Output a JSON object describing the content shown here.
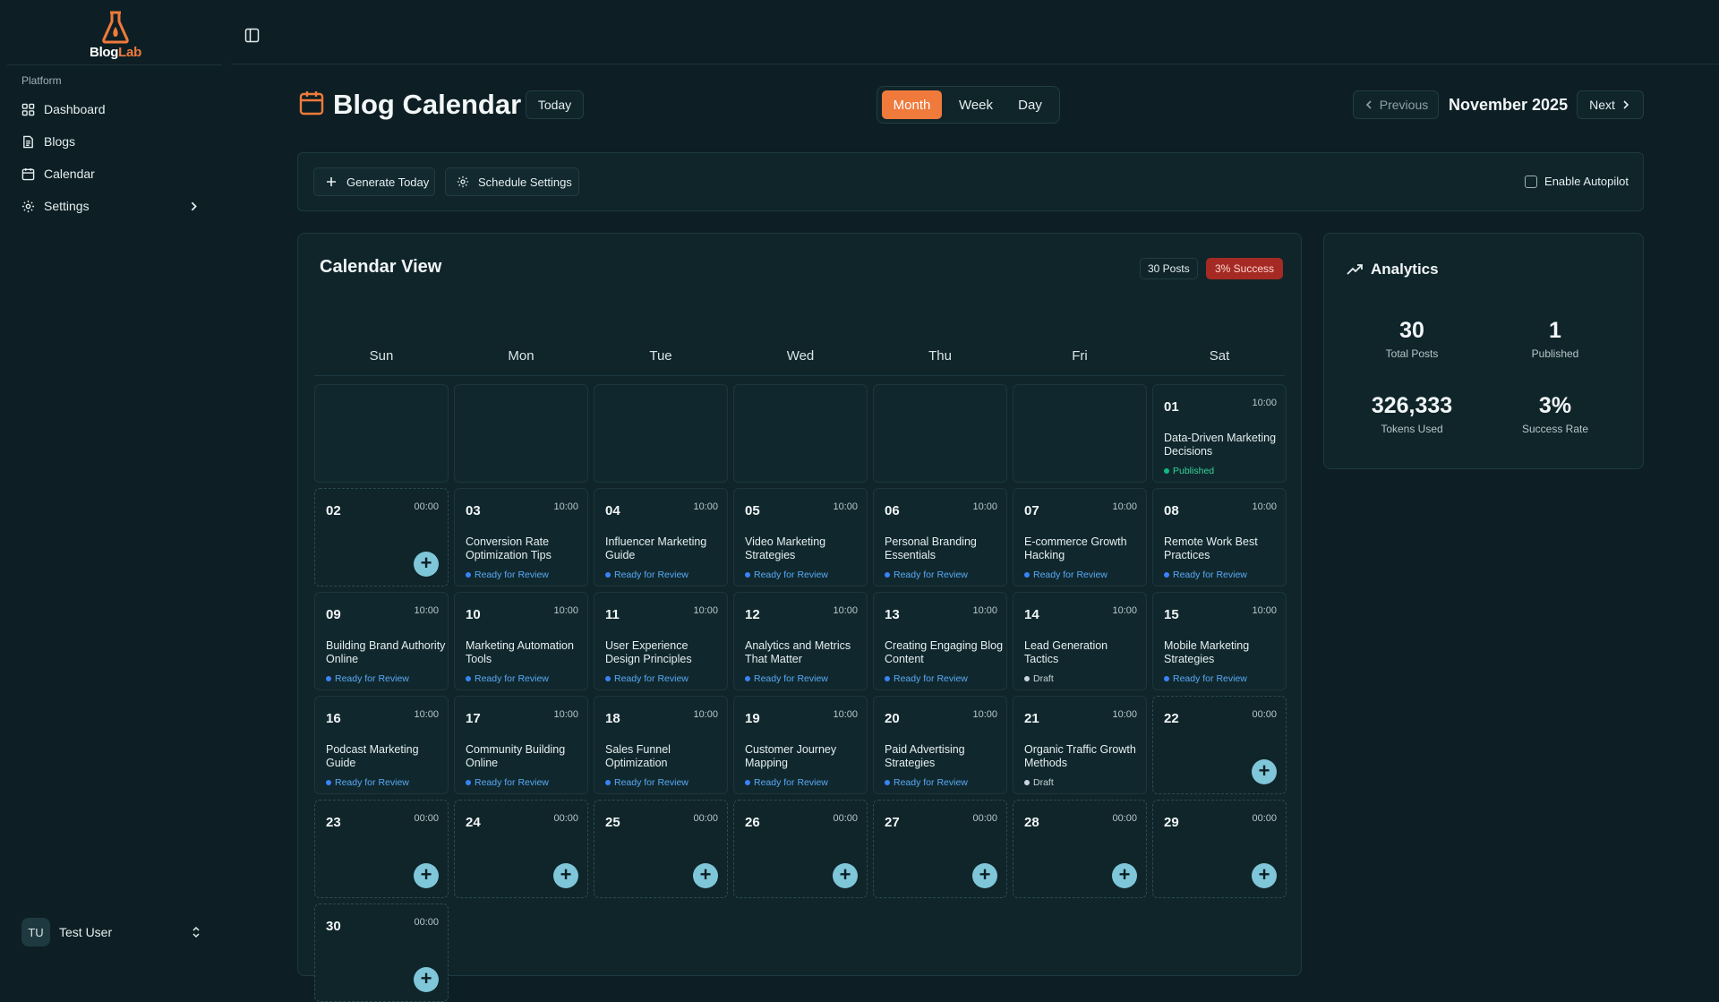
{
  "brand": {
    "name_part1": "Blog",
    "name_part2": "Lab",
    "accent": "#f07a3b"
  },
  "sidebar": {
    "group_label": "Platform",
    "items": [
      {
        "label": "Dashboard",
        "icon": "grid-icon"
      },
      {
        "label": "Blogs",
        "icon": "document-icon"
      },
      {
        "label": "Calendar",
        "icon": "calendar-icon"
      },
      {
        "label": "Settings",
        "icon": "gear-icon"
      }
    ],
    "user": {
      "initials": "TU",
      "name": "Test User"
    }
  },
  "header": {
    "title": "Blog Calendar",
    "today_label": "Today",
    "views": [
      "Month",
      "Week",
      "Day"
    ],
    "active_view": "Month",
    "prev_label": "Previous",
    "next_label": "Next",
    "month_label": "November 2025"
  },
  "toolbar": {
    "generate_label": "Generate Today",
    "schedule_label": "Schedule Settings",
    "autopilot_label": "Enable Autopilot",
    "autopilot_checked": false
  },
  "calendar": {
    "title": "Calendar View",
    "posts_badge": "30 Posts",
    "success_badge": "3% Success",
    "weekdays": [
      "Sun",
      "Mon",
      "Tue",
      "Wed",
      "Thu",
      "Fri",
      "Sat"
    ],
    "leading_blanks": 6,
    "days": [
      {
        "day": "01",
        "time": "10:00",
        "title": "Data-Driven Marketing Decisions",
        "status": "Published",
        "kind": "published"
      },
      {
        "day": "02",
        "time": "00:00",
        "title": "",
        "status": "",
        "kind": "empty"
      },
      {
        "day": "03",
        "time": "10:00",
        "title": "Conversion Rate Optimization Tips",
        "status": "Ready for Review",
        "kind": "review"
      },
      {
        "day": "04",
        "time": "10:00",
        "title": "Influencer Marketing Guide",
        "status": "Ready for Review",
        "kind": "review"
      },
      {
        "day": "05",
        "time": "10:00",
        "title": "Video Marketing Strategies",
        "status": "Ready for Review",
        "kind": "review"
      },
      {
        "day": "06",
        "time": "10:00",
        "title": "Personal Branding Essentials",
        "status": "Ready for Review",
        "kind": "review"
      },
      {
        "day": "07",
        "time": "10:00",
        "title": "E-commerce Growth Hacking",
        "status": "Ready for Review",
        "kind": "review"
      },
      {
        "day": "08",
        "time": "10:00",
        "title": "Remote Work Best Practices",
        "status": "Ready for Review",
        "kind": "review"
      },
      {
        "day": "09",
        "time": "10:00",
        "title": "Building Brand Authority Online",
        "status": "Ready for Review",
        "kind": "review"
      },
      {
        "day": "10",
        "time": "10:00",
        "title": "Marketing Automation Tools",
        "status": "Ready for Review",
        "kind": "review"
      },
      {
        "day": "11",
        "time": "10:00",
        "title": "User Experience Design Principles",
        "status": "Ready for Review",
        "kind": "review"
      },
      {
        "day": "12",
        "time": "10:00",
        "title": "Analytics and Metrics That Matter",
        "status": "Ready for Review",
        "kind": "review"
      },
      {
        "day": "13",
        "time": "10:00",
        "title": "Creating Engaging Blog Content",
        "status": "Ready for Review",
        "kind": "review"
      },
      {
        "day": "14",
        "time": "10:00",
        "title": "Lead Generation Tactics",
        "status": "Draft",
        "kind": "draft"
      },
      {
        "day": "15",
        "time": "10:00",
        "title": "Mobile Marketing Strategies",
        "status": "Ready for Review",
        "kind": "review"
      },
      {
        "day": "16",
        "time": "10:00",
        "title": "Podcast Marketing Guide",
        "status": "Ready for Review",
        "kind": "review"
      },
      {
        "day": "17",
        "time": "10:00",
        "title": "Community Building Online",
        "status": "Ready for Review",
        "kind": "review"
      },
      {
        "day": "18",
        "time": "10:00",
        "title": "Sales Funnel Optimization",
        "status": "Ready for Review",
        "kind": "review"
      },
      {
        "day": "19",
        "time": "10:00",
        "title": "Customer Journey Mapping",
        "status": "Ready for Review",
        "kind": "review"
      },
      {
        "day": "20",
        "time": "10:00",
        "title": "Paid Advertising Strategies",
        "status": "Ready for Review",
        "kind": "review"
      },
      {
        "day": "21",
        "time": "10:00",
        "title": "Organic Traffic Growth Methods",
        "status": "Draft",
        "kind": "draft"
      },
      {
        "day": "22",
        "time": "00:00",
        "title": "",
        "status": "",
        "kind": "empty"
      },
      {
        "day": "23",
        "time": "00:00",
        "title": "",
        "status": "",
        "kind": "empty"
      },
      {
        "day": "24",
        "time": "00:00",
        "title": "",
        "status": "",
        "kind": "empty"
      },
      {
        "day": "25",
        "time": "00:00",
        "title": "",
        "status": "",
        "kind": "empty"
      },
      {
        "day": "26",
        "time": "00:00",
        "title": "",
        "status": "",
        "kind": "empty"
      },
      {
        "day": "27",
        "time": "00:00",
        "title": "",
        "status": "",
        "kind": "empty"
      },
      {
        "day": "28",
        "time": "00:00",
        "title": "",
        "status": "",
        "kind": "empty"
      },
      {
        "day": "29",
        "time": "00:00",
        "title": "",
        "status": "",
        "kind": "empty"
      },
      {
        "day": "30",
        "time": "00:00",
        "title": "",
        "status": "",
        "kind": "empty"
      }
    ],
    "add_symbol": "+"
  },
  "analytics": {
    "title": "Analytics",
    "stats": [
      {
        "value": "30",
        "label": "Total Posts"
      },
      {
        "value": "1",
        "label": "Published"
      },
      {
        "value": "326,333",
        "label": "Tokens Used"
      },
      {
        "value": "3%",
        "label": "Success Rate"
      }
    ]
  }
}
